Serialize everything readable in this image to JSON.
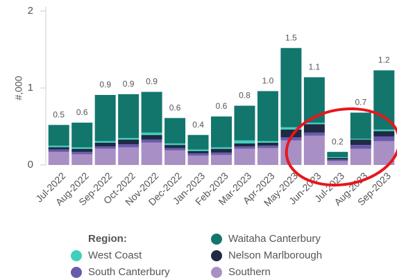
{
  "chart_data": {
    "type": "stacked_bar",
    "y_axis_label": "#,000",
    "categories": [
      "Jul-2022",
      "Aug-2022",
      "Sep-2022",
      "Oct-2022",
      "Nov-2022",
      "Dec-2022",
      "Jan-2023",
      "Feb-2023",
      "Mar-2023",
      "Apr-2023",
      "May-2023",
      "Jun-2023",
      "Jul-2023",
      "Aug-2023",
      "Sep-2023"
    ],
    "series": [
      {
        "name": "Southern",
        "color": "#a88fc4",
        "values": [
          0.17,
          0.14,
          0.21,
          0.23,
          0.29,
          0.19,
          0.12,
          0.13,
          0.21,
          0.22,
          0.32,
          0.38,
          0.05,
          0.21,
          0.31
        ]
      },
      {
        "name": "South Canterbury",
        "color": "#6a5aad",
        "values": [
          0.03,
          0.03,
          0.03,
          0.04,
          0.04,
          0.03,
          0.03,
          0.03,
          0.03,
          0.03,
          0.04,
          0.04,
          0.02,
          0.05,
          0.06
        ]
      },
      {
        "name": "Nelson Marlborough",
        "color": "#1f2a44",
        "values": [
          0.03,
          0.04,
          0.05,
          0.06,
          0.06,
          0.04,
          0.03,
          0.05,
          0.04,
          0.04,
          0.1,
          0.11,
          0.02,
          0.07,
          0.07
        ]
      },
      {
        "name": "West Coast",
        "color": "#3fd0bd",
        "values": [
          0.02,
          0.02,
          0.02,
          0.02,
          0.03,
          0.02,
          0.02,
          0.02,
          0.04,
          0.02,
          0.03,
          0.02,
          0.01,
          0.01,
          0.02
        ]
      },
      {
        "name": "Waitaha Canterbury",
        "color": "#12766d",
        "values": [
          0.27,
          0.32,
          0.6,
          0.57,
          0.53,
          0.33,
          0.19,
          0.4,
          0.45,
          0.65,
          1.03,
          0.59,
          0.07,
          0.34,
          0.77
        ]
      }
    ],
    "totals": {
      "values": [
        0.52,
        0.55,
        0.91,
        0.92,
        0.95,
        0.61,
        0.39,
        0.63,
        0.77,
        0.96,
        1.52,
        1.14,
        0.17,
        0.68,
        1.23
      ],
      "value_labels": [
        "0.5",
        "0.6",
        "0.9",
        "0.9",
        "0.9",
        "0.6",
        "0.4",
        "0.6",
        "0.8",
        "1.0",
        "1.5",
        "1.1",
        "0.2",
        "0.7",
        "1.2"
      ]
    },
    "ylim": [
      0,
      2
    ],
    "yticks": [
      0,
      1,
      2
    ],
    "legend_title": "Region:"
  }
}
